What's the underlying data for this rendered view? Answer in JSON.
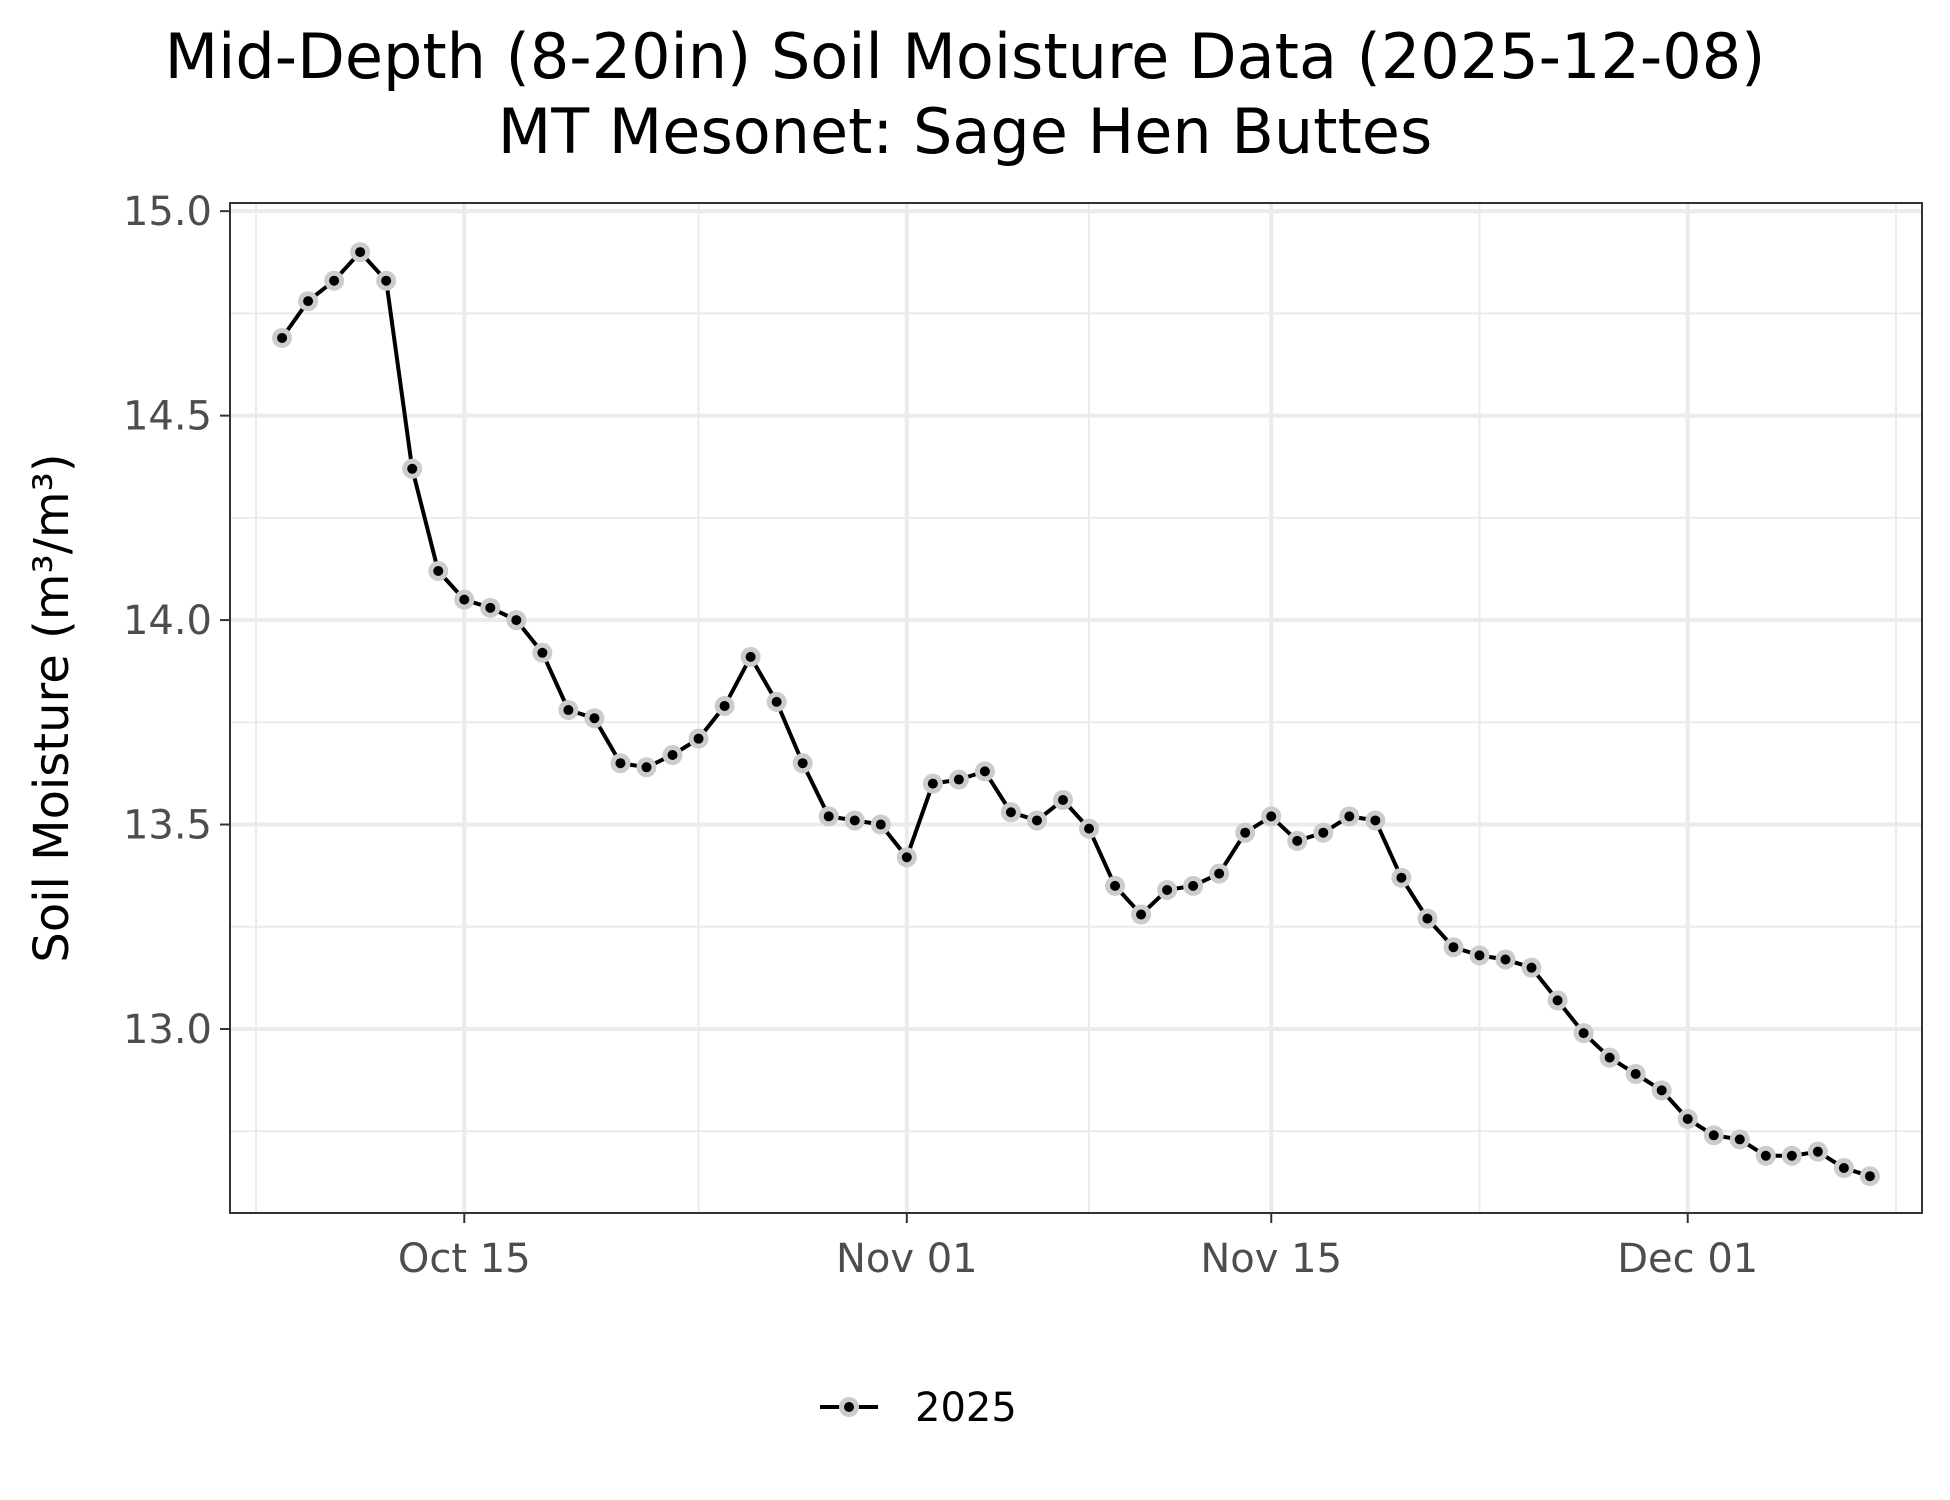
{
  "chart_data": {
    "type": "line",
    "title": "Mid-Depth (8-20in) Soil Moisture Data (2025-12-08)",
    "subtitle": "MT Mesonet: Sage Hen Buttes",
    "ylabel": "Soil Moisture (m³/m³)",
    "xlabel": "",
    "x_type": "date",
    "xlim": [
      "2025-10-06",
      "2025-12-10"
    ],
    "ylim": [
      12.55,
      15.02
    ],
    "x_ticks": [
      {
        "date": "2025-10-15",
        "label": "Oct 15"
      },
      {
        "date": "2025-11-01",
        "label": "Nov 01"
      },
      {
        "date": "2025-11-15",
        "label": "Nov 15"
      },
      {
        "date": "2025-12-01",
        "label": "Dec 01"
      }
    ],
    "x_minor_ticks": [
      "2025-10-07",
      "2025-10-24",
      "2025-11-08",
      "2025-11-23",
      "2025-12-09"
    ],
    "y_ticks": [
      13.0,
      13.5,
      14.0,
      14.5,
      15.0
    ],
    "y_tick_labels": [
      "13.0",
      "13.5",
      "14.0",
      "14.5",
      "15.0"
    ],
    "y_minor_ticks": [
      12.75,
      13.25,
      13.75,
      14.25,
      14.75
    ],
    "grid": true,
    "legend": {
      "position": "bottom",
      "entries": [
        "2025"
      ]
    },
    "series": [
      {
        "name": "2025",
        "color": "#000000",
        "marker_halo": "#cccccc",
        "x": [
          "2025-10-08",
          "2025-10-09",
          "2025-10-10",
          "2025-10-11",
          "2025-10-12",
          "2025-10-13",
          "2025-10-14",
          "2025-10-15",
          "2025-10-16",
          "2025-10-17",
          "2025-10-18",
          "2025-10-19",
          "2025-10-20",
          "2025-10-21",
          "2025-10-22",
          "2025-10-23",
          "2025-10-24",
          "2025-10-25",
          "2025-10-26",
          "2025-10-27",
          "2025-10-28",
          "2025-10-29",
          "2025-10-30",
          "2025-10-31",
          "2025-11-01",
          "2025-11-02",
          "2025-11-03",
          "2025-11-04",
          "2025-11-05",
          "2025-11-06",
          "2025-11-07",
          "2025-11-08",
          "2025-11-09",
          "2025-11-10",
          "2025-11-11",
          "2025-11-12",
          "2025-11-13",
          "2025-11-14",
          "2025-11-15",
          "2025-11-16",
          "2025-11-17",
          "2025-11-18",
          "2025-11-19",
          "2025-11-20",
          "2025-11-21",
          "2025-11-22",
          "2025-11-23",
          "2025-11-24",
          "2025-11-25",
          "2025-11-26",
          "2025-11-27",
          "2025-11-28",
          "2025-11-29",
          "2025-11-30",
          "2025-12-01",
          "2025-12-02",
          "2025-12-03",
          "2025-12-04",
          "2025-12-05",
          "2025-12-06",
          "2025-12-07",
          "2025-12-08"
        ],
        "y": [
          14.69,
          14.78,
          14.83,
          14.9,
          14.83,
          14.37,
          14.12,
          14.05,
          14.03,
          14.0,
          13.92,
          13.78,
          13.76,
          13.65,
          13.64,
          13.67,
          13.71,
          13.79,
          13.91,
          13.8,
          13.65,
          13.52,
          13.51,
          13.5,
          13.42,
          13.6,
          13.61,
          13.63,
          13.53,
          13.51,
          13.56,
          13.49,
          13.35,
          13.28,
          13.34,
          13.35,
          13.38,
          13.48,
          13.52,
          13.46,
          13.48,
          13.52,
          13.51,
          13.37,
          13.27,
          13.2,
          13.18,
          13.17,
          13.15,
          13.07,
          12.99,
          12.93,
          12.89,
          12.85,
          12.78,
          12.74,
          12.73,
          12.69,
          12.69,
          12.7,
          12.66,
          12.64
        ]
      }
    ]
  }
}
